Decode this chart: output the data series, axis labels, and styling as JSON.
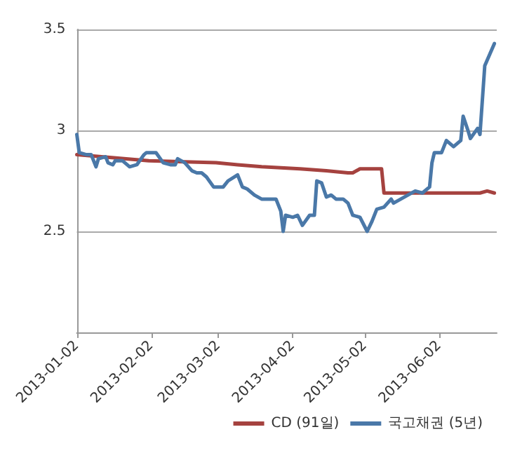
{
  "chart_data": {
    "type": "line",
    "xlim": [
      "2013-01-02",
      "2013-06-26"
    ],
    "xticks": [
      "2013-01-02",
      "2013-02-02",
      "2013-03-02",
      "2013-04-02",
      "2013-05-02",
      "2013-06-02"
    ],
    "ylim": [
      2,
      3.5
    ],
    "yticks": [
      {
        "value": 2,
        "label": null
      },
      2.5,
      3,
      3.5
    ],
    "grid": "y",
    "legend": "bottom right",
    "marker": "none",
    "line_style": "solid",
    "series": [
      {
        "name": "CD (91일)",
        "color": "#a5423f",
        "x": [
          "2013-01-02",
          "2013-02-01",
          "2013-03-01",
          "2013-03-10",
          "2013-03-20",
          "2013-04-05",
          "2013-04-16",
          "2013-04-25",
          "2013-04-27",
          "2013-04-30",
          "2013-05-09",
          "2013-05-10",
          "2013-06-19",
          "2013-06-22",
          "2013-06-25"
        ],
        "values": [
          2.88,
          2.85,
          2.84,
          2.83,
          2.82,
          2.81,
          2.8,
          2.79,
          2.79,
          2.81,
          2.81,
          2.69,
          2.69,
          2.7,
          2.69
        ]
      },
      {
        "name": "국고채권 (5년)",
        "color": "#4a78a8",
        "x": [
          "2013-01-02",
          "2013-01-03",
          "2013-01-06",
          "2013-01-08",
          "2013-01-10",
          "2013-01-11",
          "2013-01-14",
          "2013-01-15",
          "2013-01-17",
          "2013-01-18",
          "2013-01-21",
          "2013-01-24",
          "2013-01-27",
          "2013-01-30",
          "2013-01-31",
          "2013-02-04",
          "2013-02-07",
          "2013-02-10",
          "2013-02-12",
          "2013-02-13",
          "2013-02-16",
          "2013-02-19",
          "2013-02-21",
          "2013-02-23",
          "2013-02-25",
          "2013-02-28",
          "2013-03-04",
          "2013-03-06",
          "2013-03-10",
          "2013-03-12",
          "2013-03-14",
          "2013-03-17",
          "2013-03-20",
          "2013-03-26",
          "2013-03-28",
          "2013-03-29",
          "2013-03-30",
          "2013-04-02",
          "2013-04-04",
          "2013-04-06",
          "2013-04-09",
          "2013-04-11",
          "2013-04-12",
          "2013-04-14",
          "2013-04-16",
          "2013-04-18",
          "2013-04-20",
          "2013-04-23",
          "2013-04-25",
          "2013-04-27",
          "2013-04-30",
          "2013-05-03",
          "2013-05-05",
          "2013-05-07",
          "2013-05-10",
          "2013-05-13",
          "2013-05-14",
          "2013-05-17",
          "2013-05-20",
          "2013-05-23",
          "2013-05-26",
          "2013-05-29",
          "2013-05-30",
          "2013-05-31",
          "2013-06-03",
          "2013-06-05",
          "2013-06-08",
          "2013-06-11",
          "2013-06-12",
          "2013-06-14",
          "2013-06-15",
          "2013-06-18",
          "2013-06-19",
          "2013-06-20",
          "2013-06-21",
          "2013-06-25"
        ],
        "values": [
          2.98,
          2.89,
          2.88,
          2.88,
          2.82,
          2.86,
          2.87,
          2.84,
          2.83,
          2.85,
          2.85,
          2.82,
          2.83,
          2.88,
          2.89,
          2.89,
          2.84,
          2.83,
          2.83,
          2.86,
          2.84,
          2.8,
          2.79,
          2.79,
          2.77,
          2.72,
          2.72,
          2.75,
          2.78,
          2.72,
          2.71,
          2.68,
          2.66,
          2.66,
          2.6,
          2.5,
          2.58,
          2.57,
          2.58,
          2.53,
          2.58,
          2.58,
          2.75,
          2.74,
          2.67,
          2.68,
          2.66,
          2.66,
          2.64,
          2.58,
          2.57,
          2.5,
          2.55,
          2.61,
          2.62,
          2.66,
          2.64,
          2.66,
          2.68,
          2.7,
          2.69,
          2.72,
          2.84,
          2.89,
          2.89,
          2.95,
          2.92,
          2.95,
          3.07,
          3.0,
          2.96,
          3.01,
          2.98,
          3.15,
          3.32,
          3.43
        ]
      }
    ]
  }
}
